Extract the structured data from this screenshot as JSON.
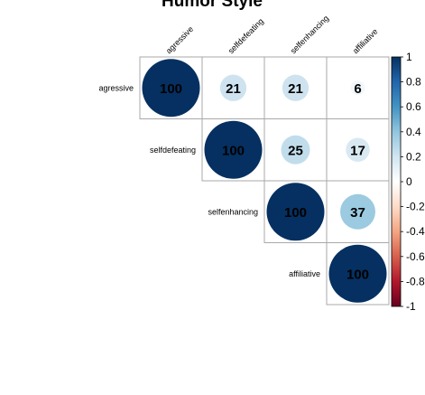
{
  "chart_data": {
    "type": "heatmap",
    "title": "Humor Style",
    "variables": [
      "agressive",
      "selfdefeating",
      "selfenhancing",
      "affiliative"
    ],
    "matrix": [
      [
        100,
        21,
        21,
        6
      ],
      [
        null,
        100,
        25,
        17
      ],
      [
        null,
        null,
        100,
        37
      ],
      [
        null,
        null,
        null,
        100
      ]
    ],
    "value_scale": 100,
    "layout": "upper-triangle",
    "glyph": "circle",
    "colorbar": {
      "range": [
        -1,
        1
      ],
      "ticks": [
        "1",
        "0.8",
        "0.6",
        "0.4",
        "0.2",
        "0",
        "-0.2",
        "-0.4",
        "-0.6",
        "-0.8",
        "-1"
      ],
      "placement": "right"
    },
    "palette": {
      "negative_end": "#67001f",
      "neutral": "#ffffff",
      "positive_end": "#053061",
      "stops": [
        "#67001f",
        "#b2182b",
        "#d6604d",
        "#f4a582",
        "#fddbc7",
        "#ffffff",
        "#d1e5f0",
        "#92c5de",
        "#4393c3",
        "#2166ac",
        "#053061"
      ],
      "grid_line": "#a9a9a9"
    }
  }
}
